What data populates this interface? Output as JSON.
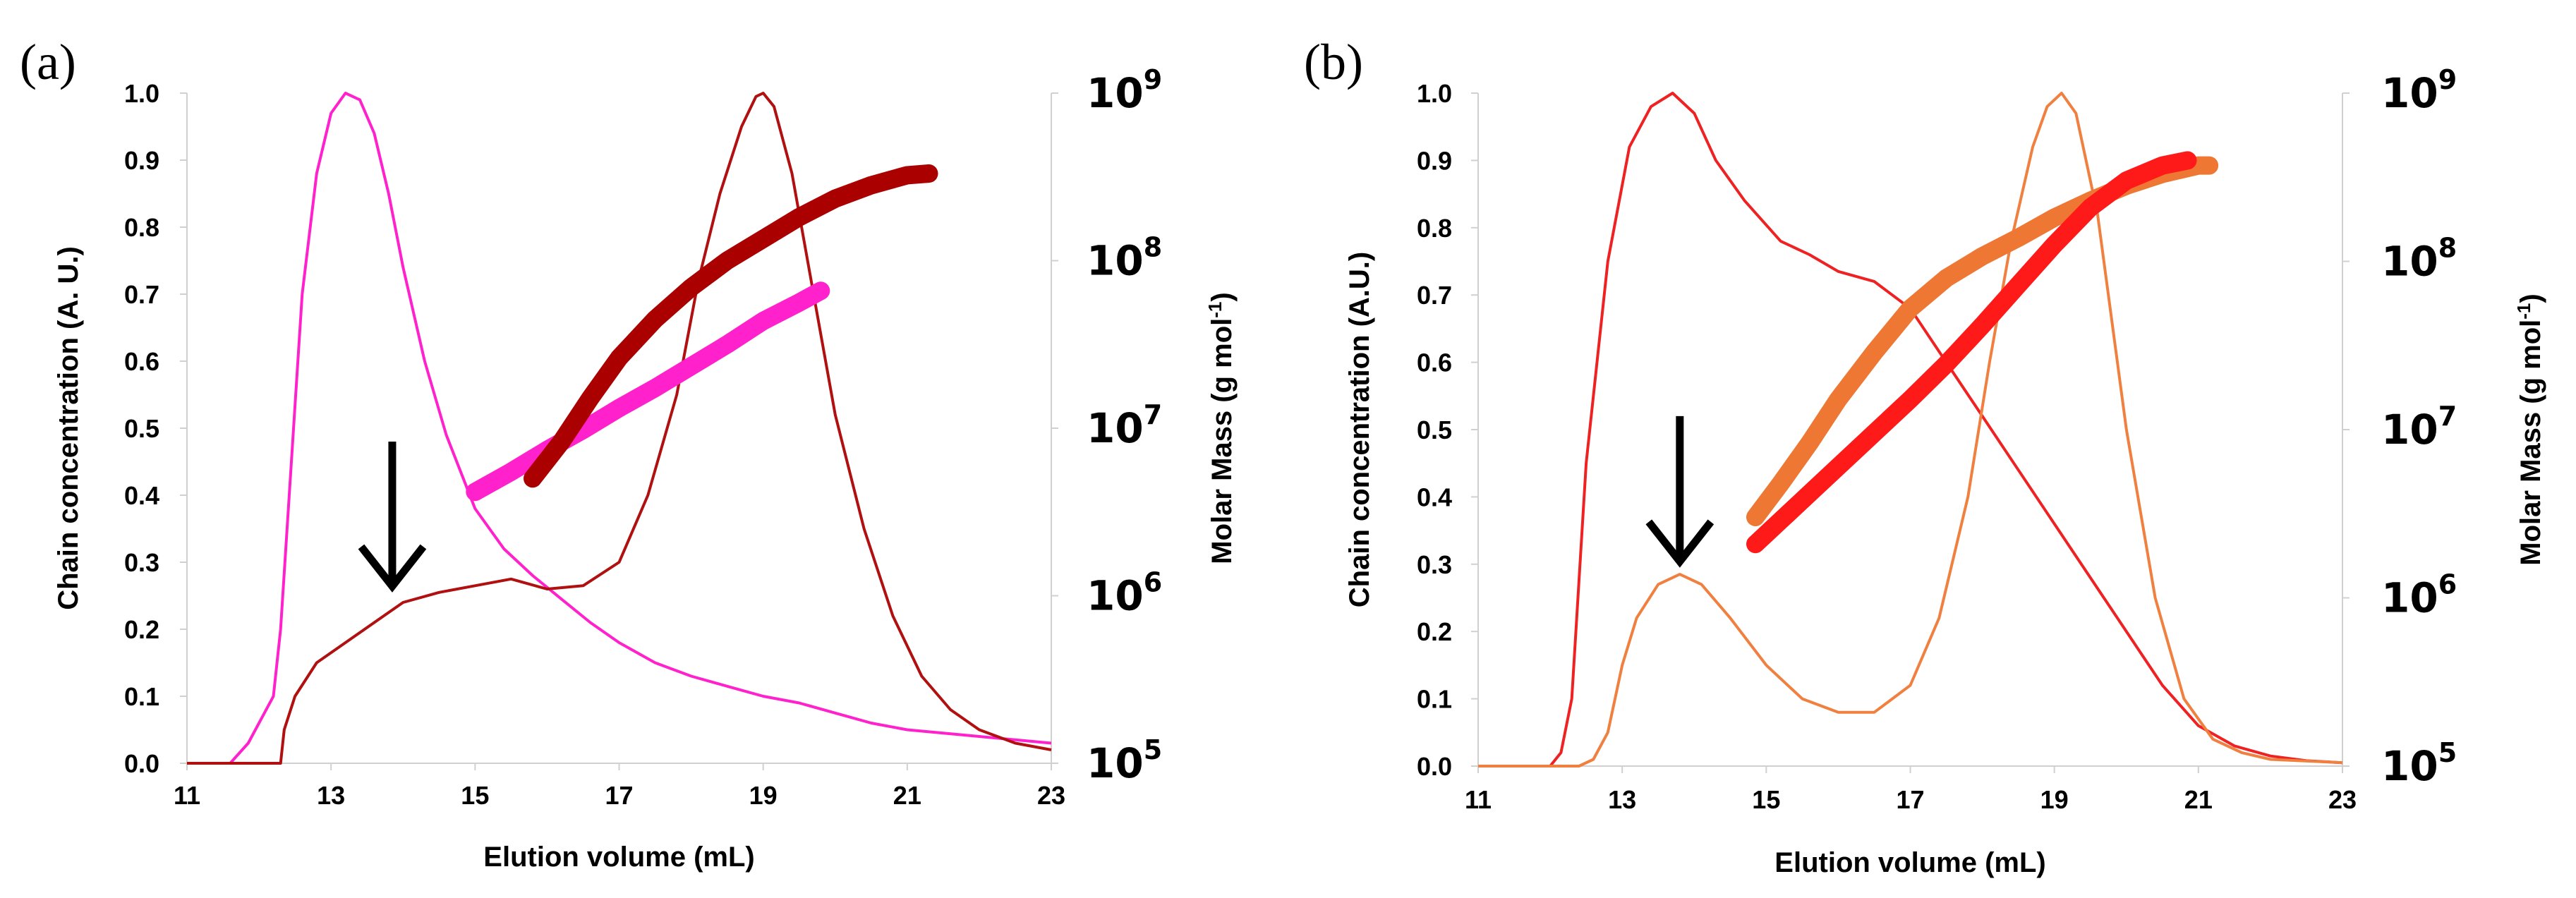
{
  "figure": {
    "panel_labels": [
      "(a)",
      "(b)"
    ]
  },
  "chart_data": [
    {
      "type": "line",
      "panel": "(a)",
      "title": "",
      "xlabel": "Elution volume (mL)",
      "ylabel": "Chain concentration (A. U.)",
      "y2label_text": "Molar Mass (g mol",
      "y2label_sup": "-1",
      "y2label_close": ")",
      "xlim": [
        11,
        23
      ],
      "ylim": [
        0,
        1.0
      ],
      "y2lim_log10": [
        5,
        9
      ],
      "xticks": [
        "11",
        "13",
        "15",
        "17",
        "19",
        "21",
        "23"
      ],
      "yticks": [
        "0.0",
        "0.1",
        "0.2",
        "0.3",
        "0.4",
        "0.5",
        "0.6",
        "0.7",
        "0.8",
        "0.9",
        "1.0"
      ],
      "y2ticks": [
        {
          "base": "10",
          "exp": "5"
        },
        {
          "base": "10",
          "exp": "6"
        },
        {
          "base": "10",
          "exp": "7"
        },
        {
          "base": "10",
          "exp": "8"
        },
        {
          "base": "10",
          "exp": "9"
        }
      ],
      "arrow_at": {
        "x": 13.85,
        "y_top": 0.48,
        "y_tip": 0.26
      },
      "series": [
        {
          "name": "concentration-magenta",
          "kind": "concentration",
          "color": "#ff22cc",
          "x": [
            11.0,
            11.6,
            11.85,
            12.0,
            12.1,
            12.2,
            12.3,
            12.45,
            12.6,
            12.8,
            13.0,
            13.2,
            13.4,
            13.6,
            13.8,
            14.0,
            14.3,
            14.6,
            15.0,
            15.4,
            15.8,
            16.2,
            16.6,
            17.0,
            17.5,
            18.0,
            18.5,
            19.0,
            19.5,
            20.0,
            20.5,
            21.0,
            21.5,
            22.0,
            22.5,
            23.0
          ],
          "y": [
            0.0,
            0.0,
            0.03,
            0.06,
            0.08,
            0.1,
            0.2,
            0.45,
            0.7,
            0.88,
            0.97,
            1.0,
            0.99,
            0.94,
            0.85,
            0.74,
            0.6,
            0.49,
            0.38,
            0.32,
            0.28,
            0.245,
            0.21,
            0.18,
            0.15,
            0.13,
            0.115,
            0.1,
            0.09,
            0.075,
            0.06,
            0.05,
            0.045,
            0.04,
            0.035,
            0.03
          ]
        },
        {
          "name": "concentration-darkred",
          "kind": "concentration",
          "color": "#b01010",
          "x": [
            11.0,
            12.3,
            12.35,
            12.5,
            12.8,
            13.2,
            13.6,
            14.0,
            14.5,
            15.0,
            15.5,
            16.0,
            16.5,
            17.0,
            17.4,
            17.8,
            18.1,
            18.4,
            18.7,
            18.9,
            19.0,
            19.15,
            19.4,
            19.7,
            20.0,
            20.4,
            20.8,
            21.2,
            21.6,
            22.0,
            22.5,
            23.0
          ],
          "y": [
            0.0,
            0.0,
            0.05,
            0.1,
            0.15,
            0.18,
            0.21,
            0.24,
            0.255,
            0.265,
            0.275,
            0.26,
            0.265,
            0.3,
            0.4,
            0.55,
            0.72,
            0.85,
            0.95,
            0.995,
            1.0,
            0.98,
            0.88,
            0.7,
            0.52,
            0.35,
            0.22,
            0.13,
            0.08,
            0.05,
            0.03,
            0.02
          ]
        },
        {
          "name": "molar-mass-magenta",
          "kind": "molar_mass",
          "color": "#ff22cc",
          "x": [
            15.0,
            15.5,
            16.0,
            16.5,
            17.0,
            17.5,
            18.0,
            18.5,
            19.0,
            19.5,
            19.8
          ],
          "log10M": [
            6.62,
            6.74,
            6.87,
            6.99,
            7.12,
            7.24,
            7.37,
            7.5,
            7.64,
            7.75,
            7.82
          ]
        },
        {
          "name": "molar-mass-darkred",
          "kind": "molar_mass",
          "color": "#aa0000",
          "x": [
            15.8,
            16.2,
            16.6,
            17.0,
            17.5,
            18.0,
            18.5,
            19.0,
            19.5,
            20.0,
            20.5,
            21.0,
            21.3
          ],
          "log10M": [
            6.7,
            6.92,
            7.18,
            7.42,
            7.65,
            7.84,
            8.0,
            8.13,
            8.26,
            8.37,
            8.45,
            8.51,
            8.52
          ]
        }
      ]
    },
    {
      "type": "line",
      "panel": "(b)",
      "title": "",
      "xlabel": "Elution volume (mL)",
      "ylabel": "Chain concentration (A.U.)",
      "y2label_text": "Molar Mass (g mol",
      "y2label_sup": "-1",
      "y2label_close": ")",
      "xlim": [
        11,
        23
      ],
      "ylim": [
        0,
        1.0
      ],
      "y2lim_log10": [
        5,
        9
      ],
      "xticks": [
        "11",
        "13",
        "15",
        "17",
        "19",
        "21",
        "23"
      ],
      "yticks": [
        "0.0",
        "0.1",
        "0.2",
        "0.3",
        "0.4",
        "0.5",
        "0.6",
        "0.7",
        "0.8",
        "0.9",
        "1.0"
      ],
      "y2ticks": [
        {
          "base": "10",
          "exp": "5"
        },
        {
          "base": "10",
          "exp": "6"
        },
        {
          "base": "10",
          "exp": "7"
        },
        {
          "base": "10",
          "exp": "8"
        },
        {
          "base": "10",
          "exp": "9"
        }
      ],
      "arrow_at": {
        "x": 13.8,
        "y_top": 0.52,
        "y_tip": 0.3
      },
      "series": [
        {
          "name": "concentration-red",
          "kind": "concentration",
          "color": "#ee2222",
          "x": [
            11.0,
            12.0,
            12.15,
            12.3,
            12.5,
            12.8,
            13.1,
            13.4,
            13.7,
            14.0,
            14.3,
            14.7,
            15.2,
            15.6,
            16.0,
            16.5,
            17.0,
            17.5,
            18.0,
            18.5,
            19.0,
            19.5,
            20.0,
            20.5,
            21.0,
            21.5,
            22.0,
            22.5,
            23.0
          ],
          "y": [
            0.0,
            0.0,
            0.02,
            0.1,
            0.45,
            0.75,
            0.92,
            0.98,
            1.0,
            0.97,
            0.9,
            0.84,
            0.78,
            0.76,
            0.735,
            0.72,
            0.68,
            0.6,
            0.52,
            0.44,
            0.36,
            0.28,
            0.2,
            0.12,
            0.06,
            0.03,
            0.015,
            0.008,
            0.005
          ]
        },
        {
          "name": "concentration-orange",
          "kind": "concentration",
          "color": "#f08040",
          "x": [
            11.0,
            12.4,
            12.6,
            12.8,
            13.0,
            13.2,
            13.5,
            13.8,
            14.1,
            14.5,
            15.0,
            15.5,
            16.0,
            16.5,
            17.0,
            17.4,
            17.8,
            18.1,
            18.4,
            18.7,
            18.9,
            19.1,
            19.3,
            19.6,
            20.0,
            20.4,
            20.8,
            21.2,
            21.6,
            22.0,
            23.0
          ],
          "y": [
            0.0,
            0.0,
            0.01,
            0.05,
            0.15,
            0.22,
            0.27,
            0.285,
            0.27,
            0.22,
            0.15,
            0.1,
            0.08,
            0.08,
            0.12,
            0.22,
            0.4,
            0.6,
            0.78,
            0.92,
            0.98,
            1.0,
            0.97,
            0.82,
            0.5,
            0.25,
            0.1,
            0.04,
            0.02,
            0.01,
            0.005
          ]
        },
        {
          "name": "molar-mass-orange",
          "kind": "molar_mass",
          "color": "#ee7733",
          "x": [
            14.85,
            15.2,
            15.6,
            16.0,
            16.5,
            17.0,
            17.5,
            18.0,
            18.5,
            19.0,
            19.5,
            20.0,
            20.5,
            21.0,
            21.15
          ],
          "log10M": [
            6.48,
            6.68,
            6.92,
            7.18,
            7.46,
            7.72,
            7.9,
            8.03,
            8.14,
            8.26,
            8.36,
            8.45,
            8.52,
            8.57,
            8.57
          ]
        },
        {
          "name": "molar-mass-red",
          "kind": "molar_mass",
          "color": "#ff1a1a",
          "x": [
            14.85,
            15.2,
            15.6,
            16.0,
            16.5,
            17.0,
            17.5,
            18.0,
            18.5,
            19.0,
            19.5,
            20.0,
            20.5,
            20.85
          ],
          "log10M": [
            6.32,
            6.46,
            6.62,
            6.78,
            6.98,
            7.18,
            7.39,
            7.62,
            7.86,
            8.1,
            8.32,
            8.48,
            8.57,
            8.6
          ]
        }
      ]
    }
  ]
}
